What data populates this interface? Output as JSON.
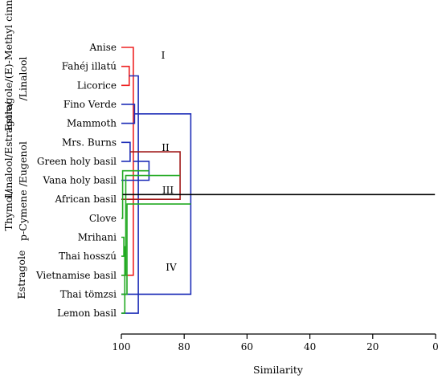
{
  "colors": {
    "red": "#ee2222",
    "blue": "#1f2fb8",
    "darkred": "#a11a1a",
    "green": "#22aa22",
    "black": "#000000"
  },
  "leaves": [
    {
      "label": "Anise",
      "color": "red"
    },
    {
      "label": "Fahéj illatú",
      "color": "red"
    },
    {
      "label": "Licorice",
      "color": "red"
    },
    {
      "label": "Fino Verde",
      "color": "blue"
    },
    {
      "label": "Mammoth",
      "color": "blue"
    },
    {
      "label": "Mrs. Burns",
      "color": "blue"
    },
    {
      "label": "Green holy basil",
      "color": "blue"
    },
    {
      "label": "Vana holy basil",
      "color": "blue"
    },
    {
      "label": "African basil",
      "color": "darkred"
    },
    {
      "label": "Clove",
      "color": "green"
    },
    {
      "label": "Mrihani",
      "color": "green"
    },
    {
      "label": "Thai hosszú",
      "color": "green"
    },
    {
      "label": "Vietnamise basil",
      "color": "green"
    },
    {
      "label": "Thai tömzsi",
      "color": "green"
    },
    {
      "label": "Lemon basil",
      "color": "green"
    }
  ],
  "group_labels": [
    {
      "text": "(E)-Methyl cinnamate",
      "line": "Estragole/"
    },
    {
      "text": "/Linalool",
      "line": "Linalool/Estragole/"
    },
    {
      "text": "Linalool/Estragole/",
      "line": ""
    },
    {
      "text": "p-Cymene /Eugenol",
      "line": "Thymol/"
    },
    {
      "text": "Estragole",
      "line": ""
    }
  ],
  "cluster_labels": [
    "I",
    "II",
    "III",
    "IV"
  ],
  "axis": {
    "title": "Similarity",
    "ticks": [
      100,
      80,
      60,
      40,
      20,
      0
    ],
    "range": [
      100,
      0
    ]
  },
  "merges": [
    {
      "a": 1,
      "b": 2,
      "sim": 97.5,
      "color": "red"
    },
    {
      "a": 0,
      "b": 12,
      "sim": 96.2,
      "color": "red"
    },
    {
      "a": 5,
      "b": 6,
      "sim": 97.2,
      "color": "blue"
    },
    {
      "a": 3,
      "b": 4,
      "sim": 95.8,
      "color": "blue"
    },
    {
      "a": 15,
      "b": 14,
      "sim": 94.6,
      "color": "blue"
    },
    {
      "a": 16,
      "b": 7,
      "sim": 91.2,
      "color": "blue"
    },
    {
      "a": 17,
      "b": 8,
      "sim": 81.3,
      "color": "darkred"
    },
    {
      "a": 13,
      "b": 18,
      "sim": 77.9,
      "color": "blue"
    },
    {
      "a": 10,
      "b": 11,
      "sim": 99.2,
      "color": "green"
    },
    {
      "a": 9,
      "b": 20,
      "sim": 99.6,
      "color": "green"
    },
    {
      "a": 21,
      "b": 12,
      "sim": 98.6,
      "color": "green"
    },
    {
      "a": 22,
      "b": 13,
      "sim": 98.2,
      "color": "green"
    },
    {
      "a": 23,
      "b": 14,
      "sim": 98.9,
      "color": "green"
    },
    {
      "a": 19,
      "b": 24,
      "sim": 0.2,
      "color": "black"
    }
  ]
}
